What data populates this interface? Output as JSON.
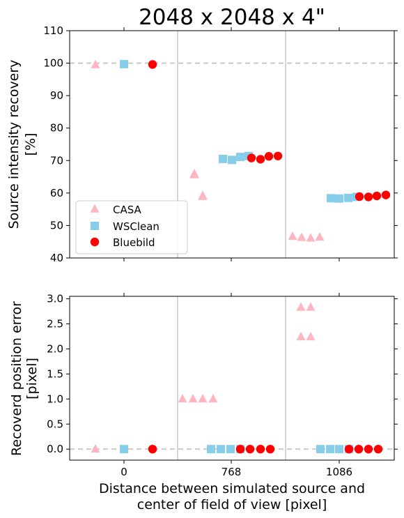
{
  "title": "2048 x 2048 x 4\"",
  "xlabel": [
    "Distance between simulated source and",
    "center of field of view [pixel]"
  ],
  "legend_entries": [
    "CASA",
    "WSClean",
    "Bluebild"
  ],
  "colors": {
    "CASA": "#ffb6c1",
    "WSClean": "#87ceeb",
    "Bluebild": "#ff0000"
  },
  "chart_data": [
    {
      "type": "scatter",
      "ylabel": [
        "Source intensity recovery",
        "[%]"
      ],
      "ylim": [
        40,
        110
      ],
      "yticks": [
        40,
        50,
        60,
        70,
        80,
        90,
        100,
        110
      ],
      "ytick_labels": [
        "40",
        "50",
        "60",
        "70",
        "80",
        "90",
        "100",
        "110"
      ],
      "reference_line": 100,
      "legend_position": "lower-left",
      "groups": [
        {
          "xtick": "0",
          "series": [
            {
              "name": "CASA",
              "values": [
                99.5
              ]
            },
            {
              "name": "WSClean",
              "values": [
                99.7
              ]
            },
            {
              "name": "Bluebild",
              "values": [
                99.6
              ]
            }
          ]
        },
        {
          "xtick": "768",
          "series": [
            {
              "name": "CASA",
              "values": [
                65.9,
                65.6,
                59.2,
                58.9
              ]
            },
            {
              "name": "WSClean",
              "values": [
                70.5,
                70.2,
                71.1,
                71.4
              ]
            },
            {
              "name": "Bluebild",
              "values": [
                70.8,
                70.4,
                71.3,
                71.4
              ]
            }
          ]
        },
        {
          "xtick": "1086",
          "series": [
            {
              "name": "CASA",
              "values": [
                46.6,
                46.3,
                46.1,
                46.4
              ]
            },
            {
              "name": "WSClean",
              "values": [
                58.4,
                58.3,
                58.5,
                58.8
              ]
            },
            {
              "name": "Bluebild",
              "values": [
                58.9,
                58.8,
                59.1,
                59.4
              ]
            }
          ]
        }
      ]
    },
    {
      "type": "scatter",
      "ylabel": [
        "Recoverd position error",
        "[pixel]"
      ],
      "ylim": [
        -0.22,
        3.05
      ],
      "yticks": [
        0,
        0.5,
        1,
        1.5,
        2,
        2.5,
        3
      ],
      "ytick_labels": [
        "0.0",
        "0.5",
        "1.0",
        "1.5",
        "2.0",
        "2.5",
        "3.0"
      ],
      "reference_line": 0,
      "xtick_labels": [
        "0",
        "768",
        "1086"
      ],
      "groups": [
        {
          "xtick": "0",
          "series": [
            {
              "name": "CASA",
              "values": [
                0.0
              ]
            },
            {
              "name": "WSClean",
              "values": [
                0.0
              ]
            },
            {
              "name": "Bluebild",
              "values": [
                0.0
              ]
            }
          ]
        },
        {
          "xtick": "768",
          "series": [
            {
              "name": "CASA",
              "values": [
                1.0,
                1.0,
                1.0,
                1.0
              ]
            },
            {
              "name": "WSClean",
              "values": [
                0.0,
                0.0,
                0.0,
                0.0
              ]
            },
            {
              "name": "Bluebild",
              "values": [
                0.0,
                0.0,
                0.0,
                0.0
              ]
            }
          ]
        },
        {
          "xtick": "1086",
          "series": [
            {
              "name": "CASA",
              "values": [
                2.83,
                2.83,
                2.24,
                2.24
              ]
            },
            {
              "name": "WSClean",
              "values": [
                0.0,
                0.0,
                0.0,
                0.0
              ]
            },
            {
              "name": "Bluebild",
              "values": [
                0.0,
                0.0,
                0.0,
                0.0
              ]
            }
          ]
        }
      ]
    }
  ]
}
